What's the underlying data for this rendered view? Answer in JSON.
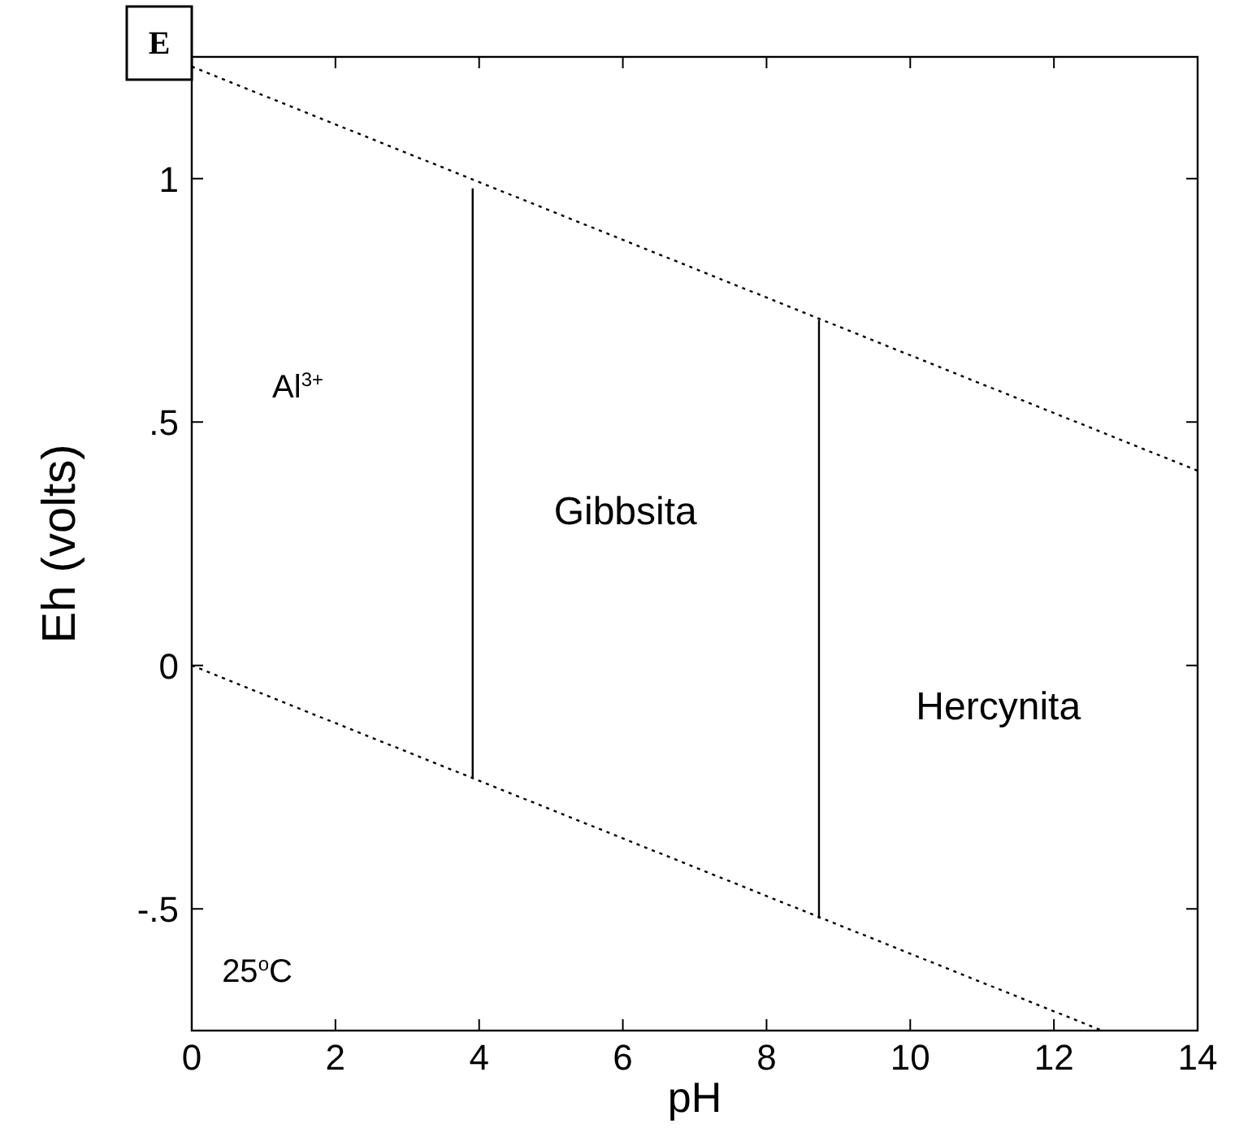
{
  "chart_data": {
    "type": "line",
    "title": "E",
    "xlabel": "pH",
    "ylabel": "Eh (volts)",
    "xlim": [
      0,
      14
    ],
    "ylim": [
      -0.75,
      1.25
    ],
    "xticks": [
      0,
      2,
      4,
      6,
      8,
      10,
      12,
      14
    ],
    "yticks": [
      {
        "value": -0.5,
        "label": "-.5"
      },
      0,
      {
        "value": 0.5,
        "label": ".5"
      },
      1
    ],
    "grid": false,
    "series": [
      {
        "color": "#000000",
        "line_style": "dotted",
        "x": [
          0,
          14
        ],
        "values": [
          1.23,
          0.4
        ]
      },
      {
        "color": "#000000",
        "line_style": "dotted",
        "x": [
          0,
          12.67
        ],
        "values": [
          0,
          -0.75
        ]
      },
      {
        "color": "#000000",
        "line_style": "solid",
        "x": [
          3.91,
          3.91
        ],
        "values": [
          -0.23,
          0.98
        ]
      },
      {
        "color": "#000000",
        "line_style": "solid",
        "x": [
          8.73,
          8.73
        ],
        "values": [
          -0.52,
          0.71
        ]
      }
    ],
    "annotations": [
      "Al$^{3+}$",
      "Gibbsita",
      "Hercynita",
      "25$^{o}$C"
    ]
  }
}
